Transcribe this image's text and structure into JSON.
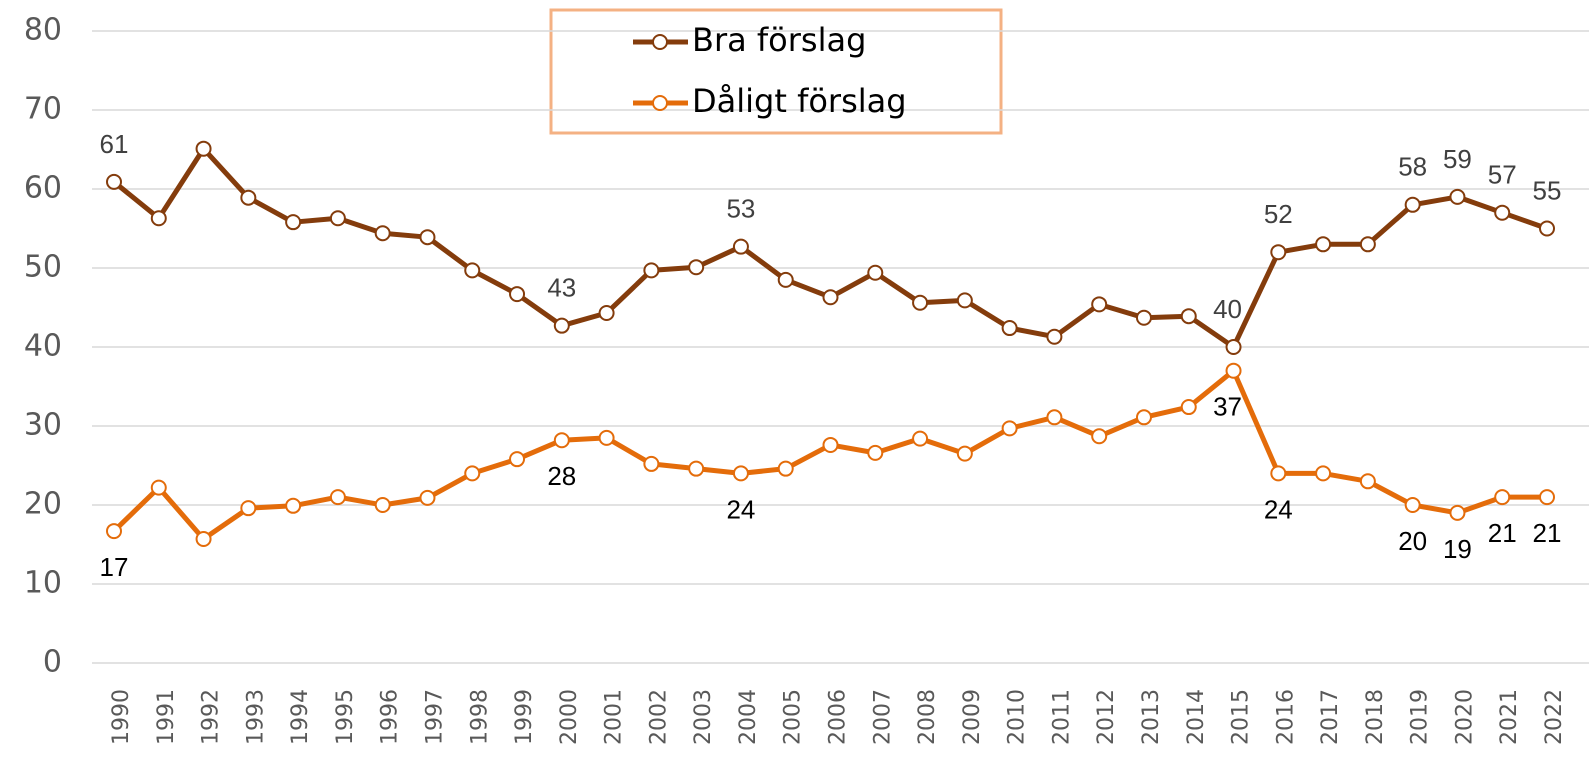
{
  "chart_data": {
    "type": "line",
    "categories": [
      "1990",
      "1991",
      "1992",
      "1993",
      "1994",
      "1995",
      "1996",
      "1997",
      "1998",
      "1999",
      "2000",
      "2001",
      "2002",
      "2003",
      "2004",
      "2005",
      "2006",
      "2007",
      "2008",
      "2009",
      "2010",
      "2011",
      "2012",
      "2013",
      "2014",
      "2015",
      "2016",
      "2017",
      "2018",
      "2019",
      "2020",
      "2021",
      "2022"
    ],
    "series": [
      {
        "name": "Bra förslag",
        "color": "#843c0c",
        "values": [
          60.9,
          56.3,
          65.1,
          58.9,
          55.8,
          56.3,
          54.4,
          53.9,
          49.7,
          46.7,
          42.7,
          44.3,
          49.7,
          50.1,
          52.7,
          48.5,
          46.3,
          49.4,
          45.6,
          45.9,
          42.4,
          41.3,
          45.4,
          43.7,
          43.9,
          40,
          52,
          53,
          53,
          58,
          59,
          57,
          55
        ],
        "value_labels": [
          "61",
          null,
          null,
          null,
          null,
          null,
          null,
          null,
          null,
          null,
          "43",
          null,
          null,
          null,
          "53",
          null,
          null,
          null,
          null,
          null,
          null,
          null,
          null,
          null,
          null,
          "40",
          "52",
          null,
          null,
          "58",
          "59",
          "57",
          "55"
        ]
      },
      {
        "name": "Dåligt förslag",
        "color": "#e46c0a",
        "values": [
          16.7,
          22.2,
          15.7,
          19.6,
          19.9,
          21,
          20,
          20.9,
          24,
          25.8,
          28.2,
          28.5,
          25.2,
          24.6,
          24,
          24.6,
          27.6,
          26.6,
          28.4,
          26.5,
          29.7,
          31.1,
          28.7,
          31.1,
          32.4,
          37,
          24,
          24,
          23,
          20,
          19,
          21,
          21
        ],
        "value_labels": [
          "17",
          null,
          null,
          null,
          null,
          null,
          null,
          null,
          null,
          null,
          "28",
          null,
          null,
          null,
          "24",
          null,
          null,
          null,
          null,
          null,
          null,
          null,
          null,
          null,
          null,
          "37",
          "24",
          null,
          null,
          "20",
          "19",
          "21",
          "21"
        ]
      }
    ],
    "ylim": [
      0,
      80
    ],
    "yticks": [
      0,
      10,
      20,
      30,
      40,
      50,
      60,
      70,
      80
    ],
    "grid": true,
    "legend": "top"
  }
}
